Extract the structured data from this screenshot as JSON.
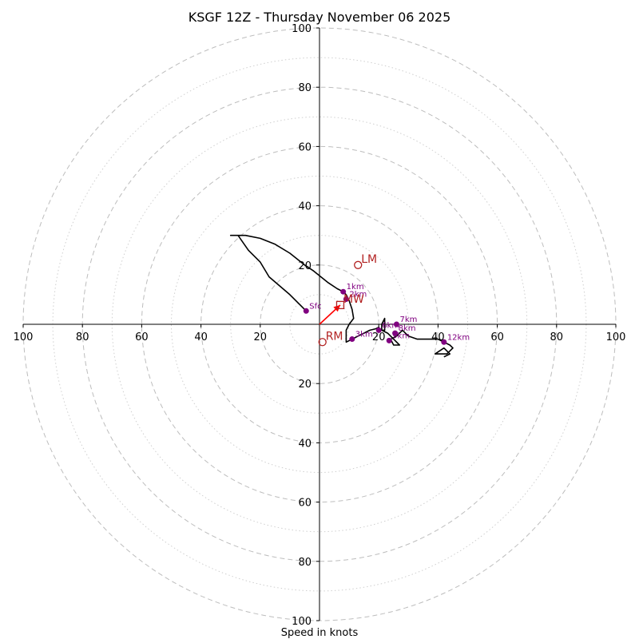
{
  "chart_data": {
    "type": "hodograph",
    "title": "KSGF 12Z - Thursday November 06 2025",
    "xlabel": "Speed in knots",
    "range": [
      -100,
      100
    ],
    "rings_dashed": [
      20,
      40,
      60,
      80,
      100
    ],
    "rings_dotted": [
      10,
      30,
      50,
      70,
      90
    ],
    "x_ticks": [
      {
        "value": -100,
        "label": "100"
      },
      {
        "value": -80,
        "label": "80"
      },
      {
        "value": -60,
        "label": "60"
      },
      {
        "value": -40,
        "label": "40"
      },
      {
        "value": -20,
        "label": "20"
      },
      {
        "value": 20,
        "label": "20"
      },
      {
        "value": 40,
        "label": "40"
      },
      {
        "value": 60,
        "label": "60"
      },
      {
        "value": 80,
        "label": "80"
      },
      {
        "value": 100,
        "label": "100"
      }
    ],
    "y_ticks": [
      {
        "value": 100,
        "label": "100"
      },
      {
        "value": 80,
        "label": "80"
      },
      {
        "value": 60,
        "label": "60"
      },
      {
        "value": 40,
        "label": "40"
      },
      {
        "value": 20,
        "label": "20"
      },
      {
        "value": -20,
        "label": "20"
      },
      {
        "value": -40,
        "label": "40"
      },
      {
        "value": -60,
        "label": "60"
      },
      {
        "value": -80,
        "label": "80"
      },
      {
        "value": -100,
        "label": "100"
      }
    ],
    "trace": [
      [
        -4.5,
        4.5
      ],
      [
        -10,
        10
      ],
      [
        -17,
        16
      ],
      [
        -20,
        21
      ],
      [
        -24,
        25
      ],
      [
        -27.5,
        30
      ],
      [
        -30,
        30
      ],
      [
        -25,
        30
      ],
      [
        -20,
        29
      ],
      [
        -15,
        27
      ],
      [
        -10,
        24
      ],
      [
        -5,
        20
      ],
      [
        -2,
        18
      ],
      [
        3,
        14
      ],
      [
        6,
        12
      ],
      [
        8,
        11
      ],
      [
        9,
        10
      ],
      [
        10,
        8
      ],
      [
        11,
        5
      ],
      [
        11.5,
        2
      ],
      [
        10,
        0
      ],
      [
        9,
        -2
      ],
      [
        9,
        -6
      ],
      [
        11,
        -5
      ],
      [
        13,
        -4
      ],
      [
        15,
        -3
      ],
      [
        17,
        -2
      ],
      [
        19,
        -1.5
      ],
      [
        20,
        -1
      ],
      [
        20,
        -2
      ],
      [
        22,
        -2
      ],
      [
        22,
        0
      ],
      [
        22,
        2
      ],
      [
        21,
        0
      ],
      [
        21,
        -2
      ],
      [
        23,
        -3
      ],
      [
        25,
        -5
      ],
      [
        27,
        -7
      ],
      [
        25,
        -7
      ],
      [
        24,
        -5
      ],
      [
        26,
        -4
      ],
      [
        27,
        -3
      ],
      [
        28,
        -2
      ],
      [
        30,
        -4
      ],
      [
        33,
        -5
      ],
      [
        36,
        -5
      ],
      [
        40,
        -5
      ],
      [
        42,
        -6
      ],
      [
        44,
        -7
      ],
      [
        45,
        -8
      ],
      [
        43,
        -10
      ],
      [
        39,
        -10
      ],
      [
        42,
        -8
      ],
      [
        44,
        -10
      ],
      [
        42,
        -11
      ]
    ],
    "height_markers": [
      {
        "label": "Sfc",
        "x": -4.5,
        "y": 4.5
      },
      {
        "label": "1km",
        "x": 8,
        "y": 11
      },
      {
        "label": "2km",
        "x": 9,
        "y": 8.5
      },
      {
        "label": "3km",
        "x": 11,
        "y": -5
      },
      {
        "label": "6km",
        "x": 20,
        "y": -2
      },
      {
        "label": "7km",
        "x": 26,
        "y": 0
      },
      {
        "label": "8km",
        "x": 25.5,
        "y": -3
      },
      {
        "label": "9km",
        "x": 23.5,
        "y": -5.5
      },
      {
        "label": "12km",
        "x": 42,
        "y": -6
      }
    ],
    "storm_motion": [
      {
        "label": "LM",
        "x": 13,
        "y": 20
      },
      {
        "label": "RM",
        "x": 1,
        "y": -6
      },
      {
        "label": "MW",
        "x": 7,
        "y": 6.5
      }
    ],
    "shear_vector": {
      "from": [
        0,
        0
      ],
      "to": [
        7,
        6.5
      ]
    },
    "colors": {
      "trace": "#000000",
      "height_marker": "#800080",
      "storm_motion": "#b22222",
      "shear_vector": "#ff0000",
      "ring": "#bdbdbd",
      "axis": "#000000"
    }
  }
}
